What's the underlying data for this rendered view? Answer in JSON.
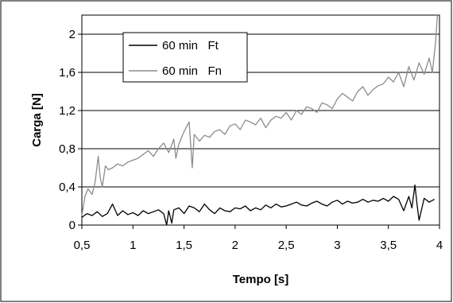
{
  "chart_data": {
    "type": "line",
    "xlabel": "Tempo [s]",
    "ylabel": "Carga [N]",
    "xlim": [
      0.5,
      4
    ],
    "ylim": [
      0,
      2.2
    ],
    "x_ticks": [
      "0,5",
      "1",
      "1,5",
      "2",
      "2,5",
      "3",
      "3,5",
      "4"
    ],
    "x_tick_values": [
      0.5,
      1,
      1.5,
      2,
      2.5,
      3,
      3.5,
      4
    ],
    "y_ticks": [
      "0",
      "0,4",
      "0,8",
      "1,2",
      "1,6",
      "2"
    ],
    "y_tick_values": [
      0,
      0.4,
      0.8,
      1.2,
      1.6,
      2
    ],
    "grid": "horizontal",
    "legend_position": "top-left",
    "series": [
      {
        "name": "60 min   Ft",
        "color": "#000000",
        "x": [
          0.5,
          0.55,
          0.6,
          0.65,
          0.7,
          0.75,
          0.8,
          0.85,
          0.9,
          0.95,
          1.0,
          1.05,
          1.1,
          1.15,
          1.2,
          1.25,
          1.3,
          1.33,
          1.35,
          1.38,
          1.4,
          1.45,
          1.5,
          1.55,
          1.6,
          1.65,
          1.7,
          1.75,
          1.8,
          1.85,
          1.9,
          1.95,
          2.0,
          2.05,
          2.1,
          2.15,
          2.2,
          2.25,
          2.3,
          2.35,
          2.4,
          2.45,
          2.5,
          2.55,
          2.6,
          2.65,
          2.7,
          2.75,
          2.8,
          2.85,
          2.9,
          2.95,
          3.0,
          3.05,
          3.1,
          3.15,
          3.2,
          3.25,
          3.3,
          3.35,
          3.4,
          3.45,
          3.5,
          3.55,
          3.6,
          3.65,
          3.7,
          3.73,
          3.76,
          3.78,
          3.8,
          3.85,
          3.9,
          3.95
        ],
        "values": [
          0.08,
          0.12,
          0.1,
          0.14,
          0.09,
          0.12,
          0.22,
          0.1,
          0.15,
          0.11,
          0.13,
          0.1,
          0.15,
          0.12,
          0.14,
          0.16,
          0.12,
          0.0,
          0.15,
          0.02,
          0.16,
          0.18,
          0.12,
          0.2,
          0.18,
          0.14,
          0.22,
          0.16,
          0.12,
          0.18,
          0.15,
          0.14,
          0.18,
          0.17,
          0.2,
          0.15,
          0.18,
          0.16,
          0.21,
          0.18,
          0.22,
          0.19,
          0.2,
          0.22,
          0.24,
          0.21,
          0.2,
          0.23,
          0.25,
          0.22,
          0.2,
          0.24,
          0.26,
          0.22,
          0.25,
          0.23,
          0.24,
          0.27,
          0.24,
          0.26,
          0.25,
          0.28,
          0.25,
          0.3,
          0.27,
          0.15,
          0.3,
          0.18,
          0.42,
          0.22,
          0.05,
          0.28,
          0.24,
          0.27
        ]
      },
      {
        "name": "60 min   Fn",
        "color": "#8c8c8c",
        "x": [
          0.5,
          0.53,
          0.56,
          0.6,
          0.63,
          0.66,
          0.68,
          0.7,
          0.73,
          0.76,
          0.8,
          0.85,
          0.9,
          0.95,
          1.0,
          1.05,
          1.1,
          1.15,
          1.2,
          1.25,
          1.3,
          1.35,
          1.4,
          1.42,
          1.45,
          1.5,
          1.55,
          1.58,
          1.6,
          1.65,
          1.7,
          1.75,
          1.8,
          1.85,
          1.9,
          1.95,
          2.0,
          2.05,
          2.1,
          2.15,
          2.2,
          2.25,
          2.3,
          2.35,
          2.4,
          2.45,
          2.5,
          2.55,
          2.6,
          2.65,
          2.7,
          2.75,
          2.8,
          2.85,
          2.9,
          2.95,
          3.0,
          3.05,
          3.1,
          3.15,
          3.2,
          3.25,
          3.3,
          3.35,
          3.4,
          3.45,
          3.5,
          3.55,
          3.6,
          3.65,
          3.7,
          3.75,
          3.8,
          3.85,
          3.9,
          3.93,
          3.96,
          3.98
        ],
        "values": [
          0.1,
          0.3,
          0.38,
          0.32,
          0.45,
          0.72,
          0.5,
          0.4,
          0.62,
          0.58,
          0.6,
          0.64,
          0.62,
          0.66,
          0.68,
          0.7,
          0.74,
          0.78,
          0.72,
          0.8,
          0.86,
          0.76,
          0.9,
          0.7,
          0.85,
          0.98,
          1.08,
          0.6,
          0.95,
          0.88,
          0.94,
          0.92,
          0.98,
          1.0,
          0.95,
          1.04,
          1.06,
          1.0,
          1.1,
          1.08,
          1.05,
          1.12,
          1.02,
          1.1,
          1.14,
          1.12,
          1.18,
          1.1,
          1.2,
          1.16,
          1.24,
          1.22,
          1.18,
          1.28,
          1.26,
          1.22,
          1.32,
          1.38,
          1.34,
          1.3,
          1.4,
          1.45,
          1.36,
          1.42,
          1.46,
          1.48,
          1.55,
          1.5,
          1.6,
          1.45,
          1.66,
          1.52,
          1.7,
          1.58,
          1.75,
          1.6,
          1.9,
          2.2
        ]
      }
    ]
  }
}
